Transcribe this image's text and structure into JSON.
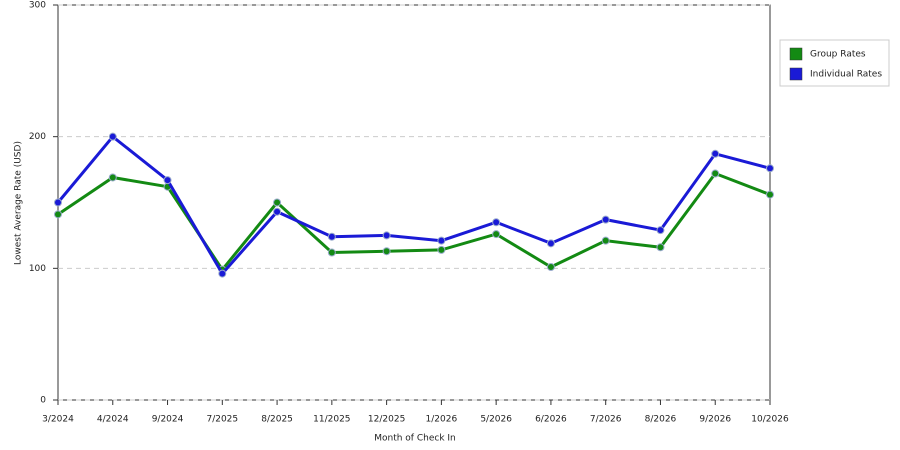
{
  "chart_data": {
    "type": "line",
    "x_label": "Month of Check In",
    "y_label": "Lowest Average Rate (USD)",
    "categories": [
      "3/2024",
      "4/2024",
      "9/2024",
      "7/2025",
      "8/2025",
      "11/2025",
      "12/2025",
      "1/2026",
      "5/2026",
      "6/2026",
      "7/2026",
      "8/2026",
      "9/2026",
      "10/2026"
    ],
    "series": [
      {
        "name": "Group Rates",
        "color": "#138a13",
        "values": [
          141,
          169,
          162,
          99,
          150,
          112,
          113,
          114,
          126,
          101,
          121,
          116,
          172,
          156
        ]
      },
      {
        "name": "Individual Rates",
        "color": "#1a1ad6",
        "values": [
          150,
          200,
          167,
          96,
          143,
          124,
          125,
          121,
          135,
          119,
          137,
          129,
          187,
          176
        ]
      }
    ],
    "ylim": [
      0,
      300
    ],
    "yticks": [
      0,
      100,
      200,
      300
    ],
    "grid": true,
    "legend": "right"
  }
}
